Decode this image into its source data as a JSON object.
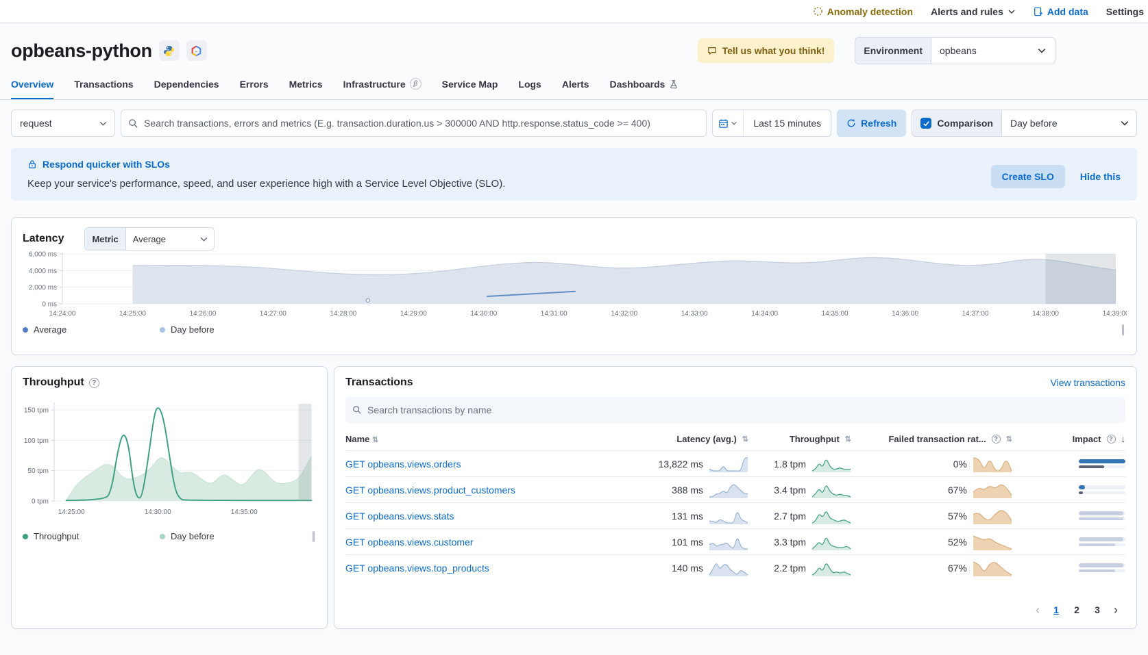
{
  "topbar": {
    "anomaly_detection": "Anomaly detection",
    "alerts_and_rules": "Alerts and rules",
    "add_data": "Add data",
    "settings": "Settings"
  },
  "header": {
    "title": "opbeans-python",
    "feedback_button": "Tell us what you think!",
    "environment_label": "Environment",
    "environment_value": "opbeans"
  },
  "tabs": [
    {
      "label": "Overview",
      "active": true
    },
    {
      "label": "Transactions"
    },
    {
      "label": "Dependencies"
    },
    {
      "label": "Errors"
    },
    {
      "label": "Metrics"
    },
    {
      "label": "Infrastructure",
      "beta": true
    },
    {
      "label": "Service Map"
    },
    {
      "label": "Logs"
    },
    {
      "label": "Alerts"
    },
    {
      "label": "Dashboards",
      "flask": true
    }
  ],
  "filters": {
    "transaction_type": "request",
    "search_placeholder": "Search transactions, errors and metrics (E.g. transaction.duration.us > 300000 AND http.response.status_code >= 400)",
    "time_range": "Last 15 minutes",
    "refresh_label": "Refresh",
    "comparison_label": "Comparison",
    "comparison_checked": true,
    "comparison_value": "Day before"
  },
  "slo_banner": {
    "title": "Respond quicker with SLOs",
    "description": "Keep your service's performance, speed, and user experience high with a Service Level Objective (SLO).",
    "create_button": "Create SLO",
    "hide_link": "Hide this"
  },
  "latency_panel": {
    "title": "Latency",
    "metric_label": "Metric",
    "metric_value": "Average",
    "legend": [
      {
        "label": "Average",
        "color": "#567fc9"
      },
      {
        "label": "Day before",
        "color": "#a9c4e6"
      }
    ]
  },
  "throughput_panel": {
    "title": "Throughput",
    "legend": [
      {
        "label": "Throughput",
        "color": "#3fa183"
      },
      {
        "label": "Day before",
        "color": "#a5d8c3"
      }
    ]
  },
  "transactions_panel": {
    "title": "Transactions",
    "view_link": "View transactions",
    "search_placeholder": "Search transactions by name",
    "columns": [
      "Name",
      "Latency (avg.)",
      "Throughput",
      "Failed transaction rat...",
      "Impact"
    ],
    "rows": [
      {
        "name": "GET opbeans.views.orders",
        "latency": "13,822 ms",
        "throughput": "1.8 tpm",
        "failed_rate": "0%",
        "latency_spark": [
          1,
          0,
          0,
          0,
          3,
          0,
          0,
          0,
          0,
          0,
          7,
          7
        ],
        "throughput_spark": [
          0,
          1,
          5,
          2,
          8,
          3,
          1,
          1,
          2,
          1,
          1,
          1
        ],
        "failed_spark": [
          1,
          1,
          0,
          1,
          0,
          0,
          1,
          0
        ],
        "impact_bars": [
          {
            "width_pct": 100,
            "color": "#3173b6"
          },
          {
            "width_pct": 55,
            "color": "#57606e"
          }
        ]
      },
      {
        "name": "GET opbeans.views.product_customers",
        "latency": "388 ms",
        "throughput": "3.4 tpm",
        "failed_rate": "67%",
        "latency_spark": [
          0,
          0,
          1,
          1,
          2,
          1,
          3,
          4,
          3,
          2,
          1,
          1
        ],
        "throughput_spark": [
          0,
          2,
          6,
          2,
          9,
          4,
          2,
          1,
          2,
          1,
          1,
          0
        ],
        "failed_spark": [
          3,
          6,
          4,
          7,
          5,
          8,
          6,
          1
        ],
        "impact_bars": [
          {
            "width_pct": 13,
            "color": "#3173b6"
          },
          {
            "width_pct": 9,
            "color": "#57606e"
          }
        ]
      },
      {
        "name": "GET opbeans.views.stats",
        "latency": "131 ms",
        "throughput": "2.7 tpm",
        "failed_rate": "57%",
        "latency_spark": [
          1,
          1,
          0,
          2,
          1,
          0,
          0,
          0,
          7,
          2,
          1,
          0
        ],
        "throughput_spark": [
          0,
          1,
          6,
          3,
          8,
          3,
          2,
          1,
          1,
          2,
          1,
          0
        ],
        "failed_spark": [
          4,
          5,
          2,
          1,
          4,
          6,
          5,
          1
        ],
        "impact_bars": [
          {
            "width_pct": 96,
            "color": "#c7d0e0"
          },
          {
            "width_pct": 96,
            "color": "#c7d0e0"
          }
        ]
      },
      {
        "name": "GET opbeans.views.customer",
        "latency": "101 ms",
        "throughput": "3.3 tpm",
        "failed_rate": "52%",
        "latency_spark": [
          2,
          3,
          1,
          2,
          2,
          3,
          1,
          0,
          6,
          1,
          0,
          0
        ],
        "throughput_spark": [
          0,
          2,
          5,
          2,
          9,
          3,
          2,
          1,
          1,
          1,
          2,
          0
        ],
        "failed_spark": [
          6,
          5,
          4,
          5,
          3,
          2,
          1,
          0
        ],
        "impact_bars": [
          {
            "width_pct": 96,
            "color": "#c7d0e0"
          },
          {
            "width_pct": 78,
            "color": "#c7d0e0"
          }
        ]
      },
      {
        "name": "GET opbeans.views.top_products",
        "latency": "140 ms",
        "throughput": "2.2 tpm",
        "failed_rate": "67%",
        "latency_spark": [
          0,
          2,
          5,
          2,
          4,
          4,
          2,
          1,
          0,
          2,
          1,
          0
        ],
        "throughput_spark": [
          0,
          1,
          5,
          2,
          8,
          4,
          1,
          2,
          1,
          2,
          1,
          0
        ],
        "failed_spark": [
          8,
          7,
          1,
          7,
          8,
          5,
          2,
          0
        ],
        "impact_bars": [
          {
            "width_pct": 96,
            "color": "#c7d0e0"
          },
          {
            "width_pct": 78,
            "color": "#c7d0e0"
          }
        ]
      }
    ],
    "pagination": {
      "pages": [
        "1",
        "2",
        "3"
      ],
      "active": "1"
    }
  },
  "chart_data": [
    {
      "id": "latency",
      "type": "area",
      "title": "Latency",
      "ylabel": "ms",
      "ylim": [
        0,
        6000
      ],
      "yticks": [
        0,
        2000,
        4000,
        6000
      ],
      "ytick_labels": [
        "0 ms",
        "2,000 ms",
        "4,000 ms",
        "6,000 ms"
      ],
      "xticks": [
        [
          0,
          "14:24:00"
        ],
        [
          1,
          "14:25:00"
        ],
        [
          2,
          "14:26:00"
        ],
        [
          3,
          "14:27:00"
        ],
        [
          4,
          "14:28:00"
        ],
        [
          5,
          "14:29:00"
        ],
        [
          6,
          "14:30:00"
        ],
        [
          7,
          "14:31:00"
        ],
        [
          8,
          "14:32:00"
        ],
        [
          9,
          "14:33:00"
        ],
        [
          10,
          "14:34:00"
        ],
        [
          11,
          "14:35:00"
        ],
        [
          12,
          "14:36:00"
        ],
        [
          13,
          "14:37:00"
        ],
        [
          14,
          "14:38:00"
        ],
        [
          15,
          "14:39:00"
        ]
      ],
      "selection_x": [
        14,
        15
      ],
      "series": [
        {
          "name": "Day before",
          "kind": "area",
          "stroke": "#c3cedd",
          "fill": "#dde4ee",
          "points": [
            [
              1,
              4600
            ],
            [
              1.6,
              4650
            ],
            [
              2.2,
              4600
            ],
            [
              2.8,
              4400
            ],
            [
              3.4,
              3950
            ],
            [
              4,
              3600
            ],
            [
              4.4,
              3480
            ],
            [
              4.9,
              3550
            ],
            [
              5.4,
              3900
            ],
            [
              6,
              4550
            ],
            [
              6.5,
              4950
            ],
            [
              6.9,
              5000
            ],
            [
              7.3,
              4700
            ],
            [
              7.8,
              4300
            ],
            [
              8.2,
              4300
            ],
            [
              8.7,
              4650
            ],
            [
              9.2,
              5050
            ],
            [
              9.6,
              5200
            ],
            [
              10,
              5050
            ],
            [
              10.4,
              4900
            ],
            [
              10.8,
              5000
            ],
            [
              11.2,
              5450
            ],
            [
              11.6,
              5600
            ],
            [
              12,
              5350
            ],
            [
              12.5,
              4800
            ],
            [
              12.9,
              4550
            ],
            [
              13.3,
              4800
            ],
            [
              13.6,
              5250
            ],
            [
              13.9,
              5400
            ],
            [
              14.2,
              5150
            ],
            [
              14.6,
              4550
            ],
            [
              15,
              4050
            ]
          ]
        },
        {
          "name": "Average",
          "kind": "line",
          "stroke": "#5e8fc4",
          "points": [
            [
              6.05,
              900
            ],
            [
              7.3,
              1500
            ]
          ]
        },
        {
          "name": "Average",
          "kind": "point",
          "stroke": "#7da1cf",
          "points": [
            [
              4.35,
              420
            ]
          ]
        }
      ]
    },
    {
      "id": "throughput",
      "type": "area",
      "title": "Throughput",
      "ylabel": "tpm",
      "ylim": [
        0,
        160
      ],
      "yticks": [
        0,
        50,
        100,
        150
      ],
      "ytick_labels": [
        "0 tpm",
        "50 tpm",
        "100 tpm",
        "150 tpm"
      ],
      "xticks": [
        [
          1,
          "14:25:00"
        ],
        [
          6,
          "14:30:00"
        ],
        [
          11,
          "14:35:00"
        ]
      ],
      "selection_x": [
        14.15,
        14.9
      ],
      "series": [
        {
          "name": "Day before",
          "kind": "area",
          "stroke": "#c8e4d7",
          "fill": "#d9ebe1",
          "points": [
            [
              0.7,
              0
            ],
            [
              1.1,
              20
            ],
            [
              1.6,
              35
            ],
            [
              2.1,
              45
            ],
            [
              2.6,
              55
            ],
            [
              3.1,
              62
            ],
            [
              3.5,
              55
            ],
            [
              3.9,
              40
            ],
            [
              4.3,
              35
            ],
            [
              4.7,
              38
            ],
            [
              5.2,
              44
            ],
            [
              5.7,
              57
            ],
            [
              6.1,
              73
            ],
            [
              6.5,
              68
            ],
            [
              6.9,
              55
            ],
            [
              7.3,
              45
            ],
            [
              7.7,
              48
            ],
            [
              8.1,
              46
            ],
            [
              8.6,
              34
            ],
            [
              9.1,
              27
            ],
            [
              9.5,
              38
            ],
            [
              9.9,
              45
            ],
            [
              10.4,
              33
            ],
            [
              10.9,
              24
            ],
            [
              11.4,
              40
            ],
            [
              11.8,
              54
            ],
            [
              12.2,
              48
            ],
            [
              12.7,
              32
            ],
            [
              13.1,
              28
            ],
            [
              13.6,
              30
            ],
            [
              14.1,
              35
            ],
            [
              14.5,
              52
            ],
            [
              14.9,
              74
            ]
          ]
        },
        {
          "name": "Throughput",
          "kind": "line",
          "stroke": "#3fa183",
          "points": [
            [
              0.7,
              1
            ],
            [
              2.9,
              1
            ],
            [
              3.3,
              15
            ],
            [
              3.7,
              85
            ],
            [
              4.0,
              114
            ],
            [
              4.3,
              95
            ],
            [
              4.6,
              25
            ],
            [
              4.85,
              3
            ],
            [
              5.1,
              8
            ],
            [
              5.45,
              70
            ],
            [
              5.8,
              145
            ],
            [
              6.05,
              157
            ],
            [
              6.35,
              135
            ],
            [
              6.7,
              70
            ],
            [
              7.0,
              18
            ],
            [
              7.3,
              3
            ],
            [
              7.6,
              1
            ],
            [
              14.9,
              1
            ]
          ]
        }
      ]
    }
  ],
  "sparkline_colors": {
    "latency": {
      "stroke": "#9fb8d4",
      "fill": "#d9e2ee"
    },
    "throughput": {
      "stroke": "#45a488",
      "fill": "#d8ebe2"
    },
    "failed": {
      "stroke": "#dcb184",
      "fill": "#eed3b2"
    }
  },
  "icons": {
    "anomaly-detection-icon": "dashed-circle",
    "chevron-down-icon": "v",
    "add-data-icon": "document-plus",
    "python-icon": "python-logo",
    "gcp-icon": "gcp-hexagon",
    "feedback-bubble-icon": "speech-bubble",
    "search-icon": "magnifier",
    "calendar-icon": "calendar",
    "refresh-icon": "circular-arrow",
    "checkbox-check-icon": "check",
    "lock-icon": "padlock",
    "info-icon": "?",
    "beta-icon": "β",
    "flask-icon": "beaker",
    "sort-icon": "⇅",
    "sort-down-icon": "↓",
    "prev-page-icon": "‹",
    "next-page-icon": "›"
  }
}
